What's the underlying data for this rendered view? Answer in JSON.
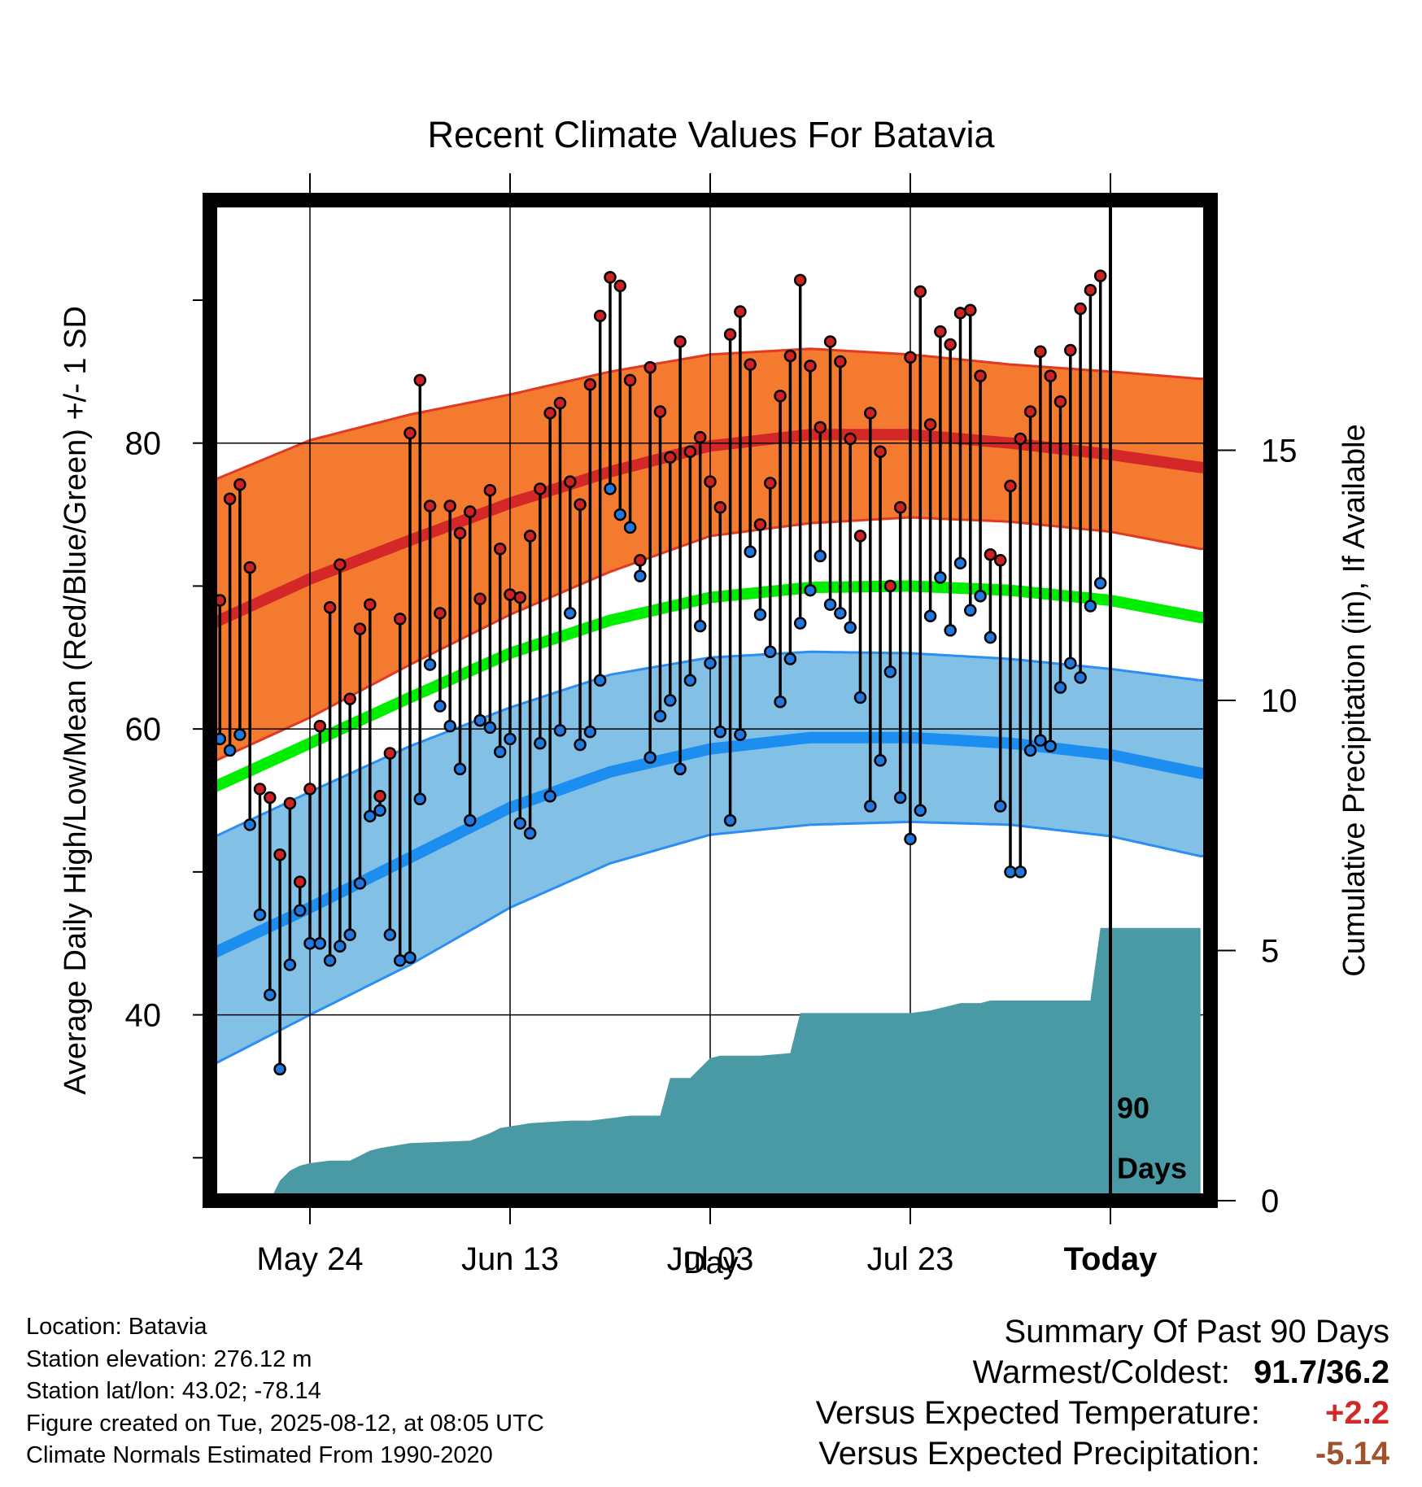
{
  "chart_data": {
    "type": "line",
    "title": "Recent Climate Values For Batavia",
    "xlabel": "Day",
    "ylabel": "Average Daily High/Low/Mean (Red/Blue/Green) +/- 1 SD",
    "y2label": "Cumulative Precipitation (in), If Available",
    "x_tick_labels": [
      "May 24",
      "Jun 13",
      "Jul 03",
      "Jul 23",
      "Today"
    ],
    "x_tick_days": [
      -80,
      -60,
      -40,
      -20,
      0
    ],
    "x_range_days": [
      -90,
      10
    ],
    "ylim": [
      27,
      97
    ],
    "y_ticks": [
      40,
      60,
      80
    ],
    "y2lim": [
      0,
      20
    ],
    "y2_ticks": [
      0,
      5,
      10,
      15
    ],
    "grid": true,
    "marker_label": "90 Days",
    "colors": {
      "high_band": "#f47a30",
      "high_mean": "#d42727",
      "low_band": "#82c0e6",
      "low_mean": "#1c8ef0",
      "mean_line": "#00ee00",
      "precip": "#4a9aa6",
      "high_dot": "#cc2222",
      "low_dot": "#2277dd"
    },
    "normals_high": {
      "days": [
        -90,
        -80,
        -70,
        -60,
        -50,
        -40,
        -30,
        -20,
        -10,
        0,
        9
      ],
      "mean": [
        67.3,
        70.5,
        73.2,
        75.8,
        78.0,
        79.8,
        80.6,
        80.6,
        80.0,
        79.2,
        78.3
      ],
      "upper": [
        77.3,
        80.2,
        82.0,
        83.4,
        85.0,
        86.2,
        86.6,
        86.2,
        85.5,
        85.0,
        84.5
      ],
      "lower": [
        57.6,
        60.8,
        64.5,
        68.0,
        71.0,
        73.5,
        74.4,
        74.8,
        74.5,
        73.8,
        72.6
      ]
    },
    "normals_low": {
      "days": [
        -90,
        -80,
        -70,
        -60,
        -50,
        -40,
        -30,
        -20,
        -10,
        0,
        9
      ],
      "mean": [
        44.2,
        47.5,
        51.0,
        54.5,
        57.0,
        58.6,
        59.4,
        59.4,
        59.0,
        58.2,
        56.9
      ],
      "upper": [
        52.3,
        55.6,
        58.8,
        61.5,
        63.8,
        65.0,
        65.4,
        65.3,
        64.9,
        64.2,
        63.4
      ],
      "lower": [
        36.4,
        40.0,
        43.5,
        47.5,
        50.6,
        52.6,
        53.3,
        53.5,
        53.3,
        52.5,
        51.1
      ]
    },
    "normals_mean": {
      "days": [
        -90,
        -80,
        -70,
        -60,
        -50,
        -40,
        -30,
        -20,
        -10,
        0,
        9
      ],
      "values": [
        55.8,
        59.0,
        62.2,
        65.3,
        67.6,
        69.2,
        69.9,
        70.0,
        69.7,
        69.0,
        67.8
      ]
    },
    "daily_high": [
      69.0,
      76.1,
      77.1,
      71.3,
      55.8,
      55.2,
      51.2,
      54.8,
      49.3,
      55.8,
      60.2,
      68.5,
      71.5,
      62.1,
      67.0,
      68.7,
      55.3,
      58.3,
      67.7,
      80.7,
      84.4,
      75.6,
      68.1,
      75.6,
      73.7,
      75.2,
      69.1,
      76.7,
      72.6,
      69.4,
      69.2,
      73.5,
      76.8,
      82.1,
      82.8,
      77.3,
      75.7,
      84.1,
      88.9,
      91.6,
      91.0,
      84.4,
      71.8,
      85.3,
      82.2,
      79.0,
      87.1,
      79.4,
      80.4,
      77.3,
      75.5,
      87.6,
      89.2,
      85.5,
      74.3,
      77.2,
      83.3,
      86.1,
      91.4,
      85.4,
      81.1,
      87.1,
      85.7,
      80.3,
      73.5,
      82.1,
      79.4,
      70.0,
      75.5,
      86.0,
      90.6,
      81.3,
      87.8,
      86.9,
      89.1,
      89.3,
      84.7,
      72.2,
      71.8,
      77.0,
      80.3,
      82.2,
      86.4,
      84.7,
      82.9,
      86.5,
      89.4,
      90.7,
      91.7
    ],
    "daily_low": [
      59.3,
      58.5,
      59.6,
      53.3,
      47.0,
      41.4,
      36.2,
      43.5,
      47.3,
      45.0,
      45.0,
      43.8,
      44.8,
      45.6,
      49.2,
      53.9,
      54.3,
      45.6,
      43.8,
      44.0,
      55.1,
      64.5,
      61.6,
      60.2,
      57.2,
      53.6,
      60.6,
      60.1,
      58.4,
      59.3,
      53.4,
      52.7,
      59.0,
      55.3,
      59.9,
      68.1,
      58.9,
      59.8,
      63.4,
      76.8,
      75.0,
      74.1,
      70.7,
      58.0,
      60.9,
      62.0,
      57.2,
      63.4,
      67.2,
      64.6,
      59.8,
      53.6,
      59.6,
      72.4,
      68.0,
      65.4,
      61.9,
      64.9,
      67.4,
      69.7,
      72.1,
      68.7,
      68.1,
      67.1,
      62.2,
      54.6,
      57.8,
      64.0,
      55.2,
      52.3,
      54.3,
      67.9,
      70.6,
      66.9,
      71.6,
      68.3,
      69.3,
      66.4,
      54.6,
      50.0,
      50.0,
      58.5,
      59.2,
      58.8,
      62.9,
      64.6,
      63.6,
      68.6,
      70.2,
      69.1
    ],
    "precip_cumulative": {
      "days": [
        -90,
        -84,
        -83,
        -82,
        -81,
        -80,
        -78,
        -76,
        -75,
        -74,
        -73,
        -70,
        -64,
        -62,
        -61,
        -58,
        -54,
        -52,
        -48,
        -46,
        -45,
        -44,
        -42,
        -40,
        -39,
        -35,
        -32,
        -31,
        -25,
        -20,
        -18,
        -16,
        -15,
        -13,
        -12,
        -3,
        -2,
        -1,
        0,
        9
      ],
      "values": [
        0.0,
        0.0,
        0.4,
        0.6,
        0.7,
        0.75,
        0.8,
        0.8,
        0.9,
        1.0,
        1.05,
        1.15,
        1.2,
        1.35,
        1.45,
        1.55,
        1.6,
        1.6,
        1.7,
        1.7,
        1.7,
        2.45,
        2.45,
        2.85,
        2.9,
        2.9,
        2.95,
        3.75,
        3.75,
        3.75,
        3.8,
        3.9,
        3.95,
        3.95,
        4.0,
        4.0,
        4.0,
        5.45,
        5.45,
        5.45
      ]
    }
  },
  "footer": {
    "location": "Location: Batavia",
    "elevation": "Station elevation: 276.12 m",
    "latlon": "Station lat/lon: 43.02; -78.14",
    "created": "Figure created on Tue, 2025-08-12, at 08:05 UTC",
    "normals": "Climate Normals Estimated From 1990-2020"
  },
  "summary": {
    "heading": "Summary Of Past 90 Days",
    "warmest_label": "Warmest/Coldest:",
    "warmest_value": "91.7/36.2",
    "temp_label": "Versus Expected Temperature:",
    "temp_value": "+2.2",
    "temp_color": "#d42727",
    "precip_label": "Versus Expected Precipitation:",
    "precip_value": "-5.14",
    "precip_color": "#a0522d"
  }
}
